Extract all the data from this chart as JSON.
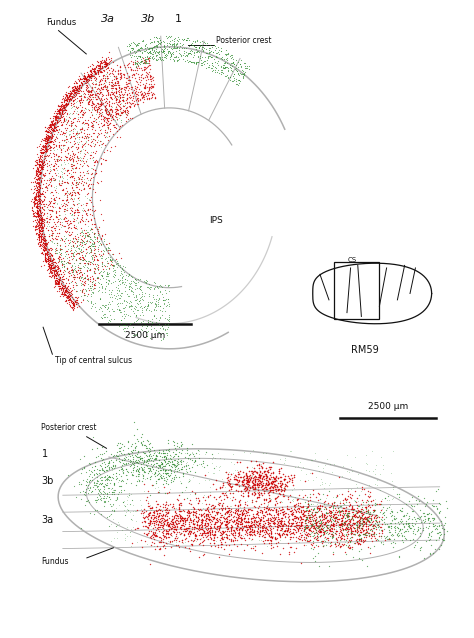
{
  "bg_color": "#ffffff",
  "red_color": "#cc0000",
  "green_color": "#2e8b2e",
  "gray_color": "#b0b0b0",
  "dark_gray": "#888888",
  "dark_color": "#111111",
  "panel1": {
    "title_labels": [
      "Fundus",
      "3a",
      "3b",
      "1",
      "Posterior crest"
    ],
    "bottom_labels": [
      "Tip of central sulcus"
    ],
    "ips_label": "IPS",
    "scale_label": "2500 μm",
    "rm59_label": "RM59",
    "cs_label": "CS"
  },
  "panel2": {
    "left_labels": [
      "Posterior crest",
      "1",
      "3b",
      "3a",
      "Fundus"
    ],
    "scale_label": "2500 μm"
  }
}
